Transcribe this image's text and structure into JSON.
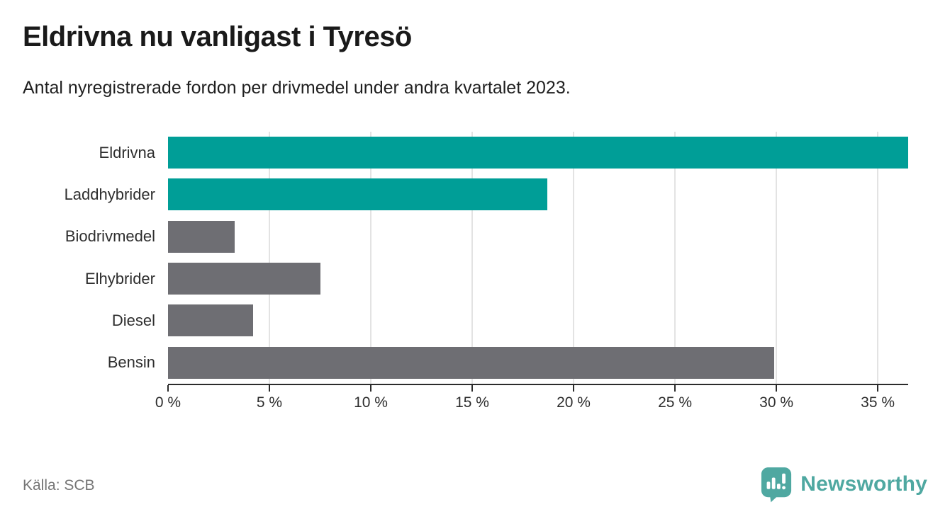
{
  "header": {
    "title": "Eldrivna nu vanligast i Tyresö",
    "subtitle": "Antal nyregistrerade fordon per drivmedel under andra kvartalet 2023."
  },
  "chart_data": {
    "type": "bar",
    "orientation": "horizontal",
    "categories": [
      "Eldrivna",
      "Laddhybrider",
      "Biodrivmedel",
      "Elhybrider",
      "Diesel",
      "Bensin"
    ],
    "values": [
      36.5,
      18.7,
      3.3,
      7.5,
      4.2,
      29.9
    ],
    "unit": "%",
    "xlim": [
      0,
      36.5
    ],
    "ticks": [
      {
        "value": 0,
        "label": "0 %"
      },
      {
        "value": 5,
        "label": "5 %"
      },
      {
        "value": 10,
        "label": "10 %"
      },
      {
        "value": 15,
        "label": "15 %"
      },
      {
        "value": 20,
        "label": "20 %"
      },
      {
        "value": 25,
        "label": "25 %"
      },
      {
        "value": 30,
        "label": "30 %"
      },
      {
        "value": 35,
        "label": "35 %"
      }
    ],
    "bar_colors": [
      "#009e97",
      "#009e97",
      "#6e6e73",
      "#6e6e73",
      "#6e6e73",
      "#6e6e73"
    ],
    "highlight_color": "#009e97",
    "base_color": "#6e6e73",
    "gridline_color": "#e3e3e3",
    "grid": true,
    "legend": "none",
    "title": "Eldrivna nu vanligast i Tyresö",
    "xlabel": "",
    "ylabel": ""
  },
  "footer": {
    "source": "Källa: SCB",
    "brand": "Newsworthy",
    "brand_color": "#4fa8a1"
  }
}
